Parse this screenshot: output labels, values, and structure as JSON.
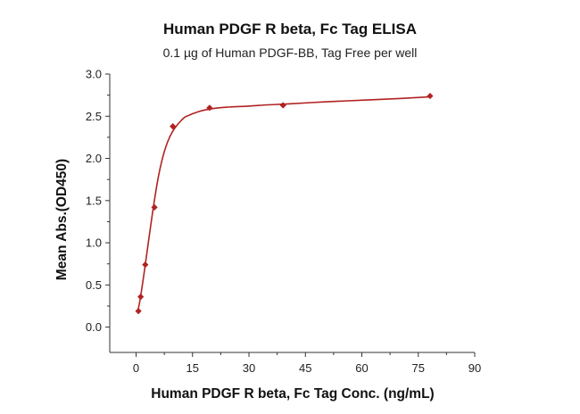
{
  "chart_data": {
    "type": "scatter",
    "title": "Human PDGF R beta, Fc Tag ELISA",
    "subtitle": "0.1 µg of Human PDGF-BB, Tag Free per well",
    "xlabel": "Human PDGF R beta, Fc Tag Conc. (ng/mL)",
    "ylabel": "Mean Abs.(OD450)",
    "xlim": [
      -7,
      90
    ],
    "ylim": [
      -0.3,
      3.0
    ],
    "x_ticks": [
      "0",
      "15",
      "30",
      "45",
      "60",
      "75",
      "90"
    ],
    "y_ticks": [
      "0.0",
      "0.5",
      "1.0",
      "1.5",
      "2.0",
      "2.5",
      "3.0"
    ],
    "grid": false,
    "series": [
      {
        "name": "Human PDGF R beta, Fc Tag",
        "color": "#b22222",
        "marker": "diamond",
        "x": [
          0.61,
          1.22,
          2.44,
          4.88,
          9.77,
          19.53,
          39.06,
          78.13
        ],
        "y": [
          0.19,
          0.36,
          0.74,
          1.42,
          2.38,
          2.6,
          2.63,
          2.74
        ]
      }
    ],
    "fit_curve": {
      "color": "#b22222",
      "x": [
        0.5,
        1,
        2,
        3,
        4,
        5,
        6,
        7,
        8,
        9,
        10,
        11,
        12,
        13,
        14,
        15,
        17,
        19,
        22,
        25,
        30,
        35,
        40,
        50,
        60,
        70,
        78
      ],
      "y": [
        0.2,
        0.31,
        0.6,
        0.92,
        1.24,
        1.54,
        1.8,
        2.0,
        2.15,
        2.26,
        2.34,
        2.4,
        2.45,
        2.49,
        2.51,
        2.53,
        2.56,
        2.58,
        2.6,
        2.61,
        2.62,
        2.635,
        2.645,
        2.67,
        2.69,
        2.71,
        2.73
      ]
    }
  }
}
